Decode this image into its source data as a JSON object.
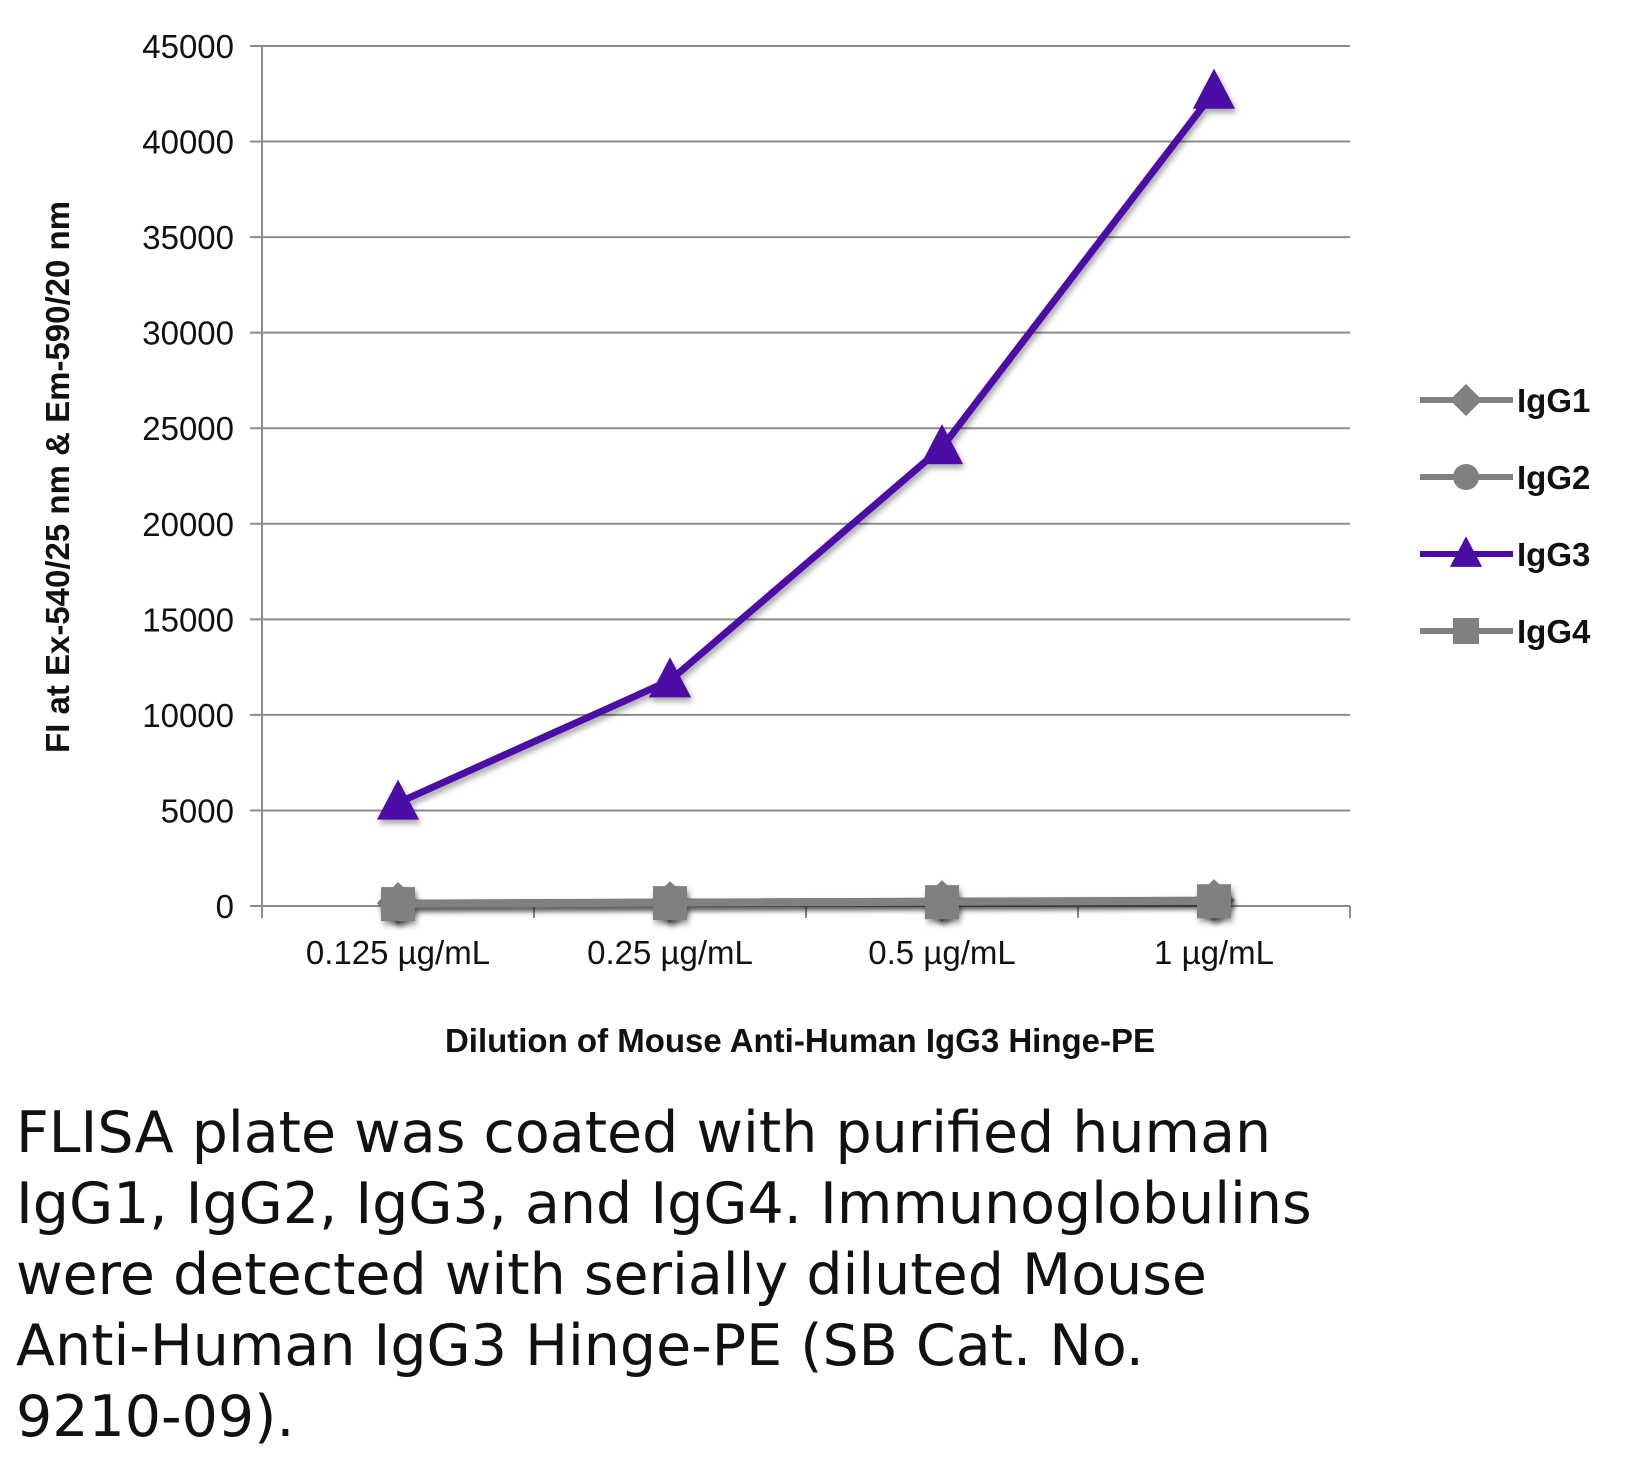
{
  "chart_data": {
    "type": "line",
    "title": "",
    "xlabel": "Dilution of Mouse Anti-Human IgG3 Hinge-PE",
    "ylabel": "FI at Ex-540/25 nm & Em-590/20 nm",
    "categories": [
      "0.125 µg/mL",
      "0.25 µg/mL",
      "0.5 µg/mL",
      "1 µg/mL"
    ],
    "ylim": [
      0,
      45000
    ],
    "yticks": [
      "0",
      "5000",
      "10000",
      "15000",
      "20000",
      "25000",
      "30000",
      "35000",
      "40000",
      "45000"
    ],
    "grid": "horizontal",
    "legend_position": "right",
    "series": [
      {
        "name": "IgG1",
        "marker": "diamond",
        "color": "#808080",
        "values": [
          150,
          200,
          250,
          300
        ]
      },
      {
        "name": "IgG2",
        "marker": "circle",
        "color": "#808080",
        "values": [
          150,
          200,
          250,
          300
        ]
      },
      {
        "name": "IgG3",
        "marker": "triangle",
        "color": "#4B0CA6",
        "values": [
          5400,
          11800,
          24000,
          42600
        ]
      },
      {
        "name": "IgG4",
        "marker": "square",
        "color": "#808080",
        "values": [
          100,
          150,
          200,
          250
        ]
      }
    ]
  },
  "caption": "FLISA plate was coated with purified human\nIgG1, IgG2, IgG3, and IgG4.  Immunoglobulins\nwere detected with serially diluted Mouse\nAnti-Human IgG3 Hinge-PE (SB Cat. No.\n9210-09)."
}
